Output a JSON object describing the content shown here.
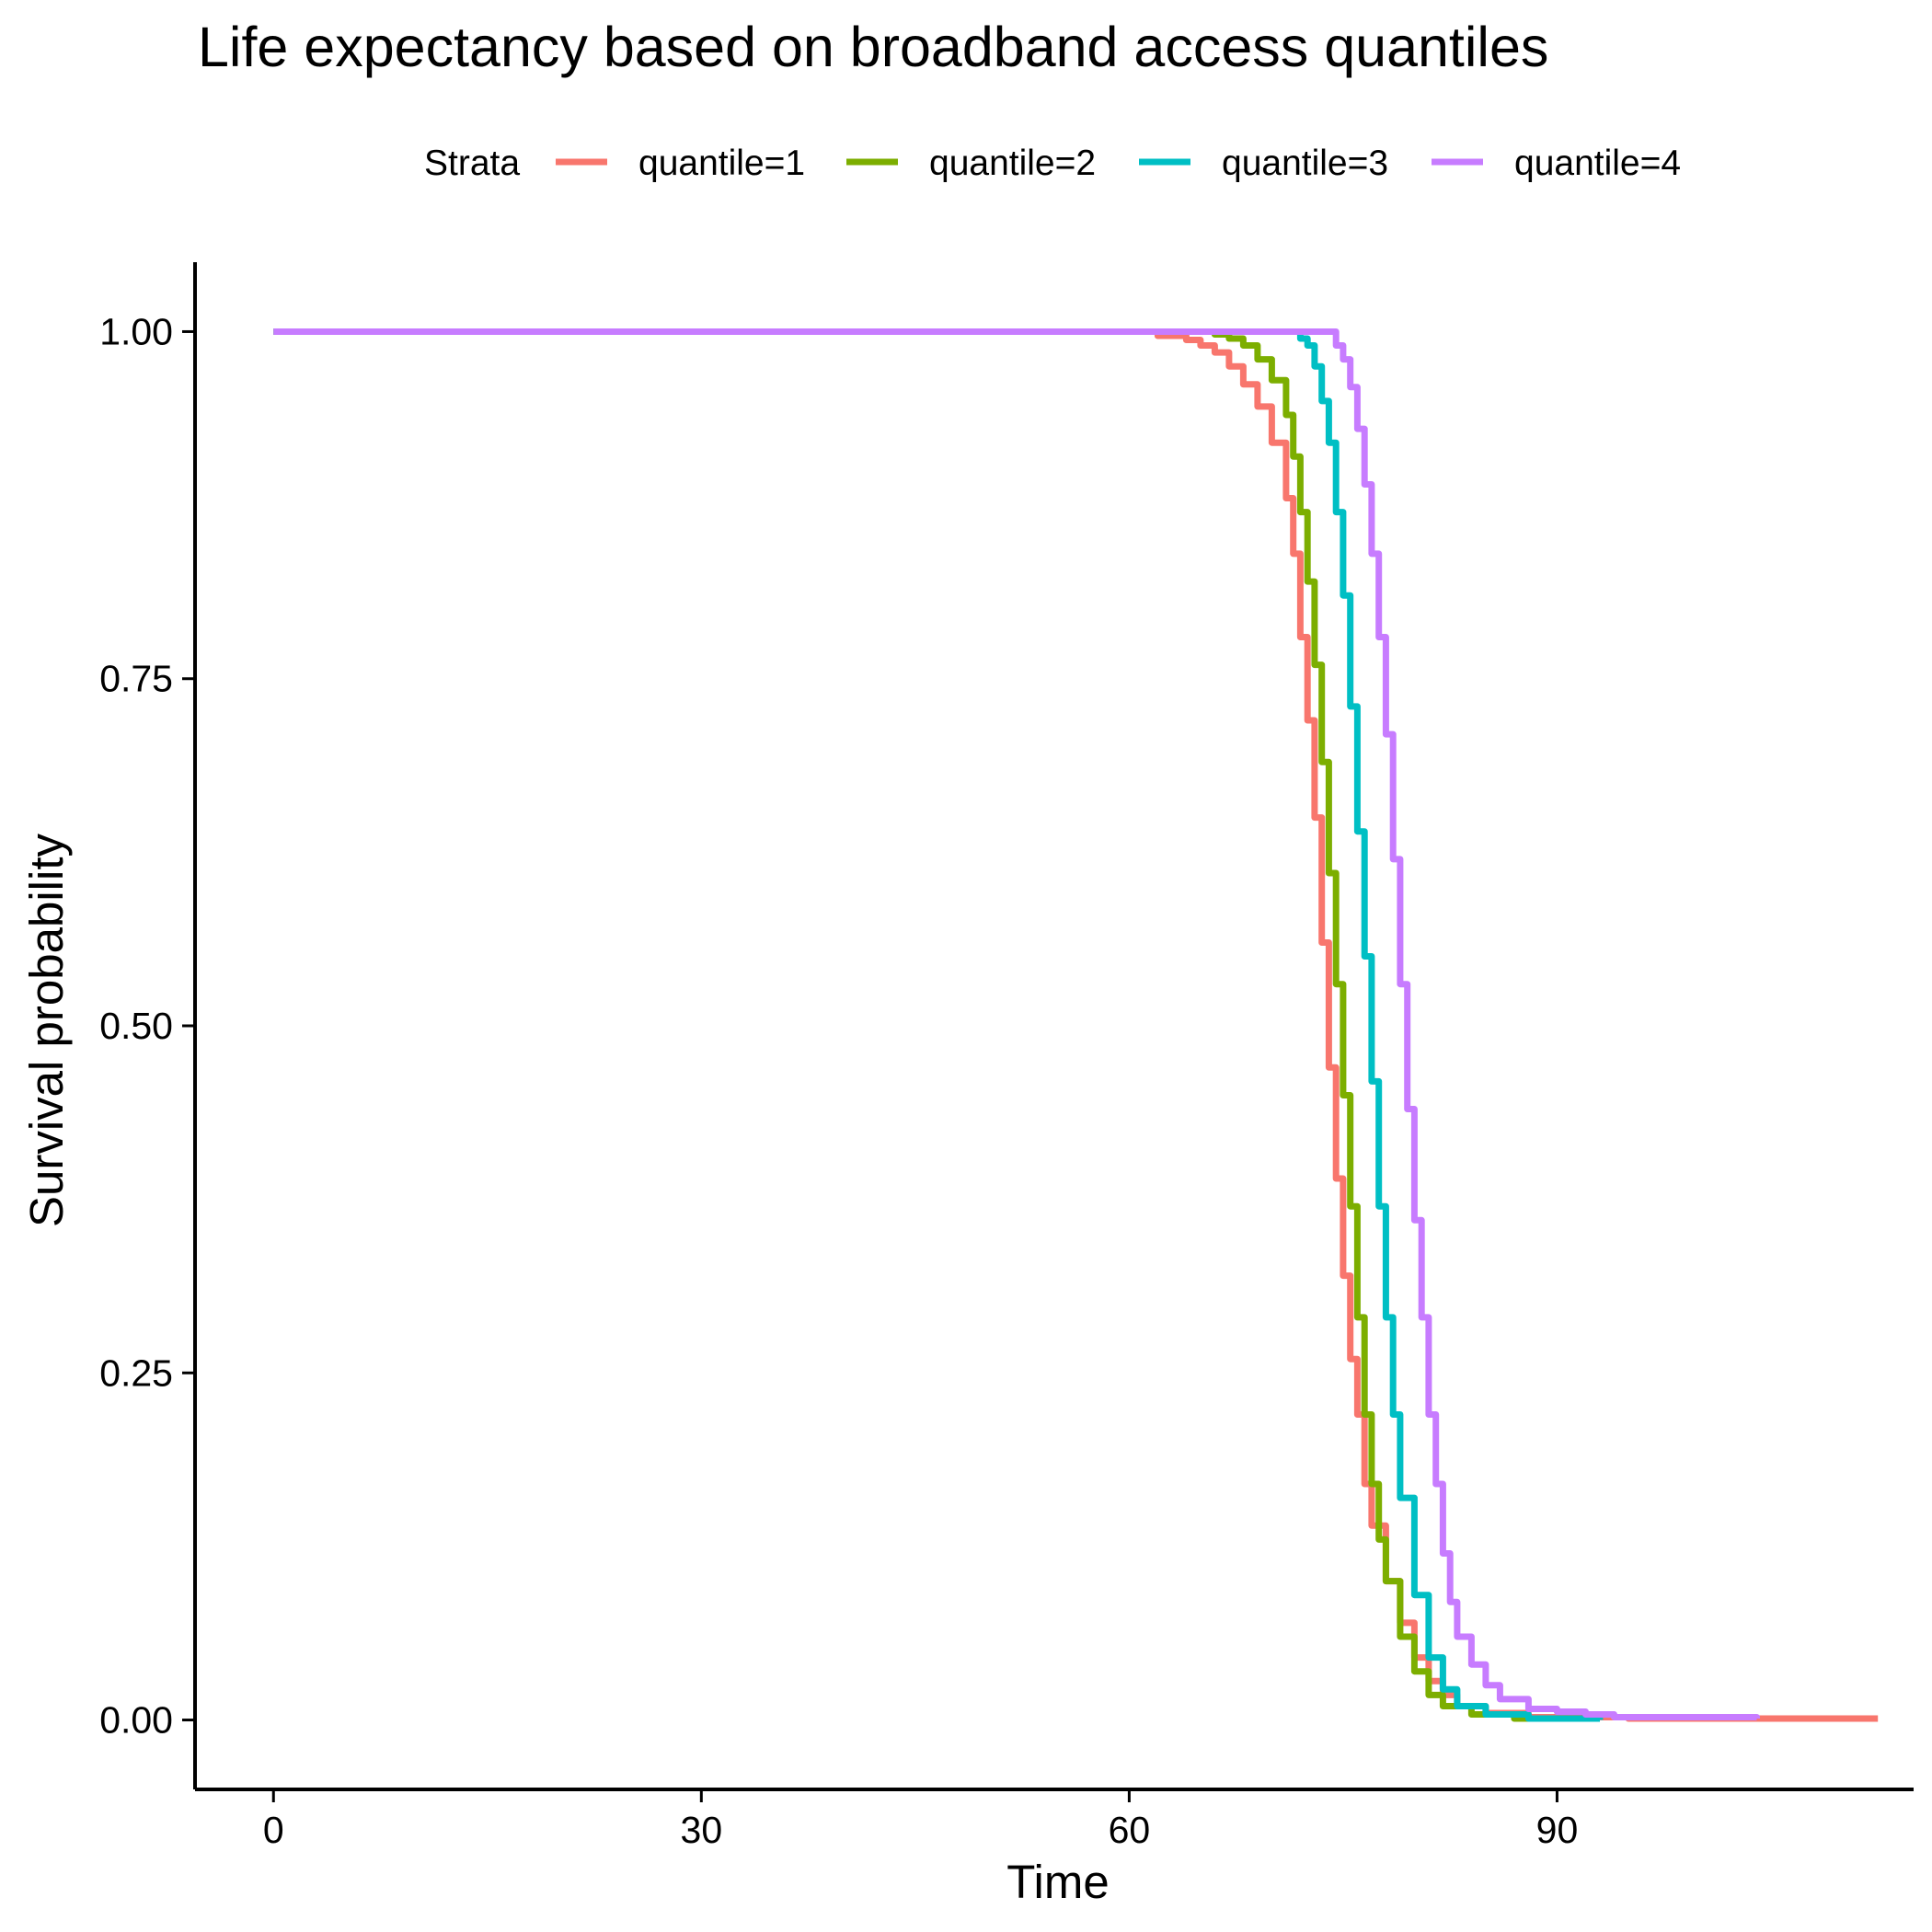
{
  "chart_data": {
    "type": "line",
    "title": "Life expectancy based on broadband access quantiles",
    "xlabel": "Time",
    "ylabel": "Survival probability",
    "xlim": [
      -5.5,
      115
    ],
    "ylim": [
      -0.05,
      1.05
    ],
    "x_ticks": [
      0,
      30,
      60,
      90
    ],
    "x_tick_labels": [
      "0",
      "30",
      "60",
      "90"
    ],
    "y_ticks": [
      0,
      0.25,
      0.5,
      0.75,
      1.0
    ],
    "y_tick_labels": [
      "0.00",
      "0.25",
      "0.50",
      "0.75",
      "1.00"
    ],
    "grid": false,
    "legend": {
      "title": "Strata",
      "position": "top"
    },
    "series": [
      {
        "name": "quantile=1",
        "color": "#F8766D",
        "x": [
          0,
          60,
          62,
          64,
          65,
          66,
          67,
          68,
          69,
          70,
          71,
          71.5,
          72,
          72.5,
          73,
          73.5,
          74,
          74.5,
          75,
          75.5,
          76,
          76.5,
          77,
          78,
          79,
          80,
          81,
          82,
          83,
          85,
          88,
          95,
          104,
          112.5
        ],
        "y": [
          1.0,
          1.0,
          0.997,
          0.994,
          0.99,
          0.985,
          0.975,
          0.962,
          0.946,
          0.92,
          0.88,
          0.84,
          0.78,
          0.72,
          0.65,
          0.56,
          0.47,
          0.39,
          0.32,
          0.26,
          0.22,
          0.17,
          0.14,
          0.1,
          0.07,
          0.045,
          0.028,
          0.018,
          0.01,
          0.005,
          0.002,
          0.001,
          0.001,
          0.001
        ]
      },
      {
        "name": "quantile=2",
        "color": "#7CAE00",
        "x": [
          0,
          64,
          66,
          67,
          68,
          69,
          70,
          71,
          71.5,
          72,
          72.5,
          73,
          73.5,
          74,
          74.5,
          75,
          75.5,
          76,
          76.5,
          77,
          77.5,
          78,
          79,
          80,
          81,
          82,
          84,
          87,
          92
        ],
        "y": [
          1.0,
          1.0,
          0.998,
          0.995,
          0.99,
          0.98,
          0.965,
          0.94,
          0.91,
          0.87,
          0.82,
          0.76,
          0.69,
          0.61,
          0.53,
          0.45,
          0.37,
          0.29,
          0.22,
          0.17,
          0.13,
          0.1,
          0.06,
          0.035,
          0.018,
          0.01,
          0.004,
          0.001,
          0.0
        ]
      },
      {
        "name": "quantile=3",
        "color": "#00BFC4",
        "x": [
          0,
          72,
          72.5,
          73,
          73.5,
          74,
          74.5,
          75,
          75.5,
          76,
          76.5,
          77,
          77.5,
          78,
          78.5,
          79,
          80,
          81,
          82,
          83,
          85,
          88,
          93
        ],
        "y": [
          1.0,
          0.995,
          0.99,
          0.975,
          0.95,
          0.92,
          0.87,
          0.81,
          0.73,
          0.64,
          0.55,
          0.46,
          0.37,
          0.29,
          0.22,
          0.16,
          0.09,
          0.045,
          0.022,
          0.01,
          0.004,
          0.001,
          0.0
        ]
      },
      {
        "name": "quantile=4",
        "color": "#C77CFF",
        "x": [
          0,
          74,
          74.5,
          75,
          75.5,
          76,
          76.5,
          77,
          77.5,
          78,
          78.5,
          79,
          79.5,
          80,
          80.5,
          81,
          81.5,
          82,
          82.5,
          83,
          84,
          85,
          86,
          88,
          90,
          92,
          94,
          104
        ],
        "y": [
          1.0,
          1.0,
          0.99,
          0.98,
          0.96,
          0.93,
          0.89,
          0.84,
          0.78,
          0.71,
          0.62,
          0.53,
          0.44,
          0.36,
          0.29,
          0.22,
          0.17,
          0.12,
          0.085,
          0.06,
          0.04,
          0.025,
          0.015,
          0.008,
          0.006,
          0.004,
          0.002,
          0.001
        ]
      }
    ]
  }
}
